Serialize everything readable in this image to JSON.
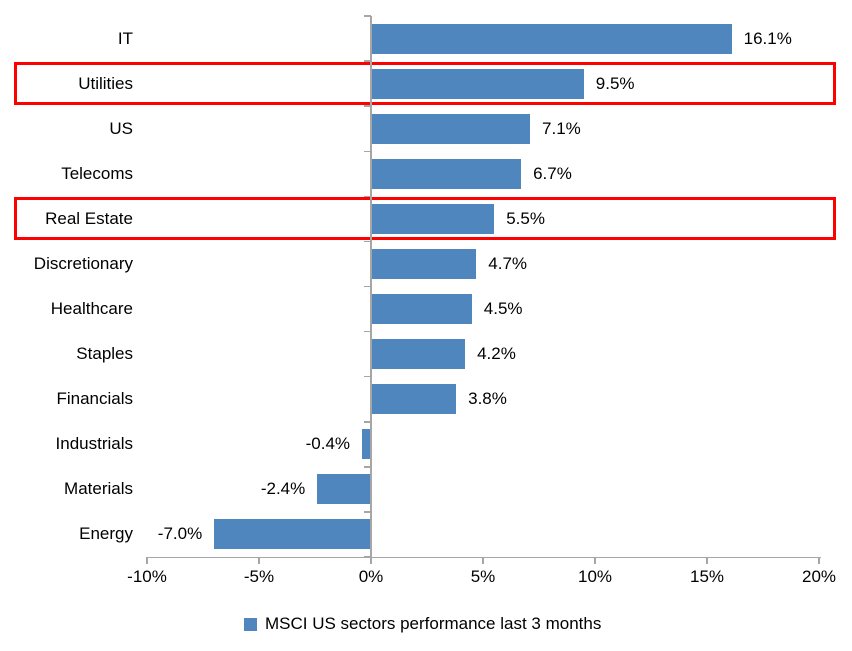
{
  "chart_data": {
    "type": "bar",
    "orientation": "horizontal",
    "categories": [
      "IT",
      "Utilities",
      "US",
      "Telecoms",
      "Real Estate",
      "Discretionary",
      "Healthcare",
      "Staples",
      "Financials",
      "Industrials",
      "Materials",
      "Energy"
    ],
    "values": [
      16.1,
      9.5,
      7.1,
      6.7,
      5.5,
      4.7,
      4.5,
      4.2,
      3.8,
      -0.4,
      -2.4,
      -7.0
    ],
    "value_labels": [
      "16.1%",
      "9.5%",
      "7.1%",
      "6.7%",
      "5.5%",
      "4.7%",
      "4.5%",
      "4.2%",
      "3.8%",
      "-0.4%",
      "-2.4%",
      "-7.0%"
    ],
    "highlighted_categories": [
      "Utilities",
      "Real Estate"
    ],
    "x_axis": {
      "min": -10,
      "max": 20,
      "ticks": [
        -10,
        -5,
        0,
        5,
        10,
        15,
        20
      ],
      "tick_labels": [
        "-10%",
        "-5%",
        "0%",
        "5%",
        "10%",
        "15%",
        "20%"
      ]
    },
    "legend": {
      "label": "MSCI US sectors performance last 3 months",
      "position": "bottom"
    },
    "grid": false,
    "colors": {
      "bar": "#4e86bd",
      "highlight_box": "#ff0000",
      "axis": "#a6a6a6",
      "text": "#000000"
    }
  }
}
